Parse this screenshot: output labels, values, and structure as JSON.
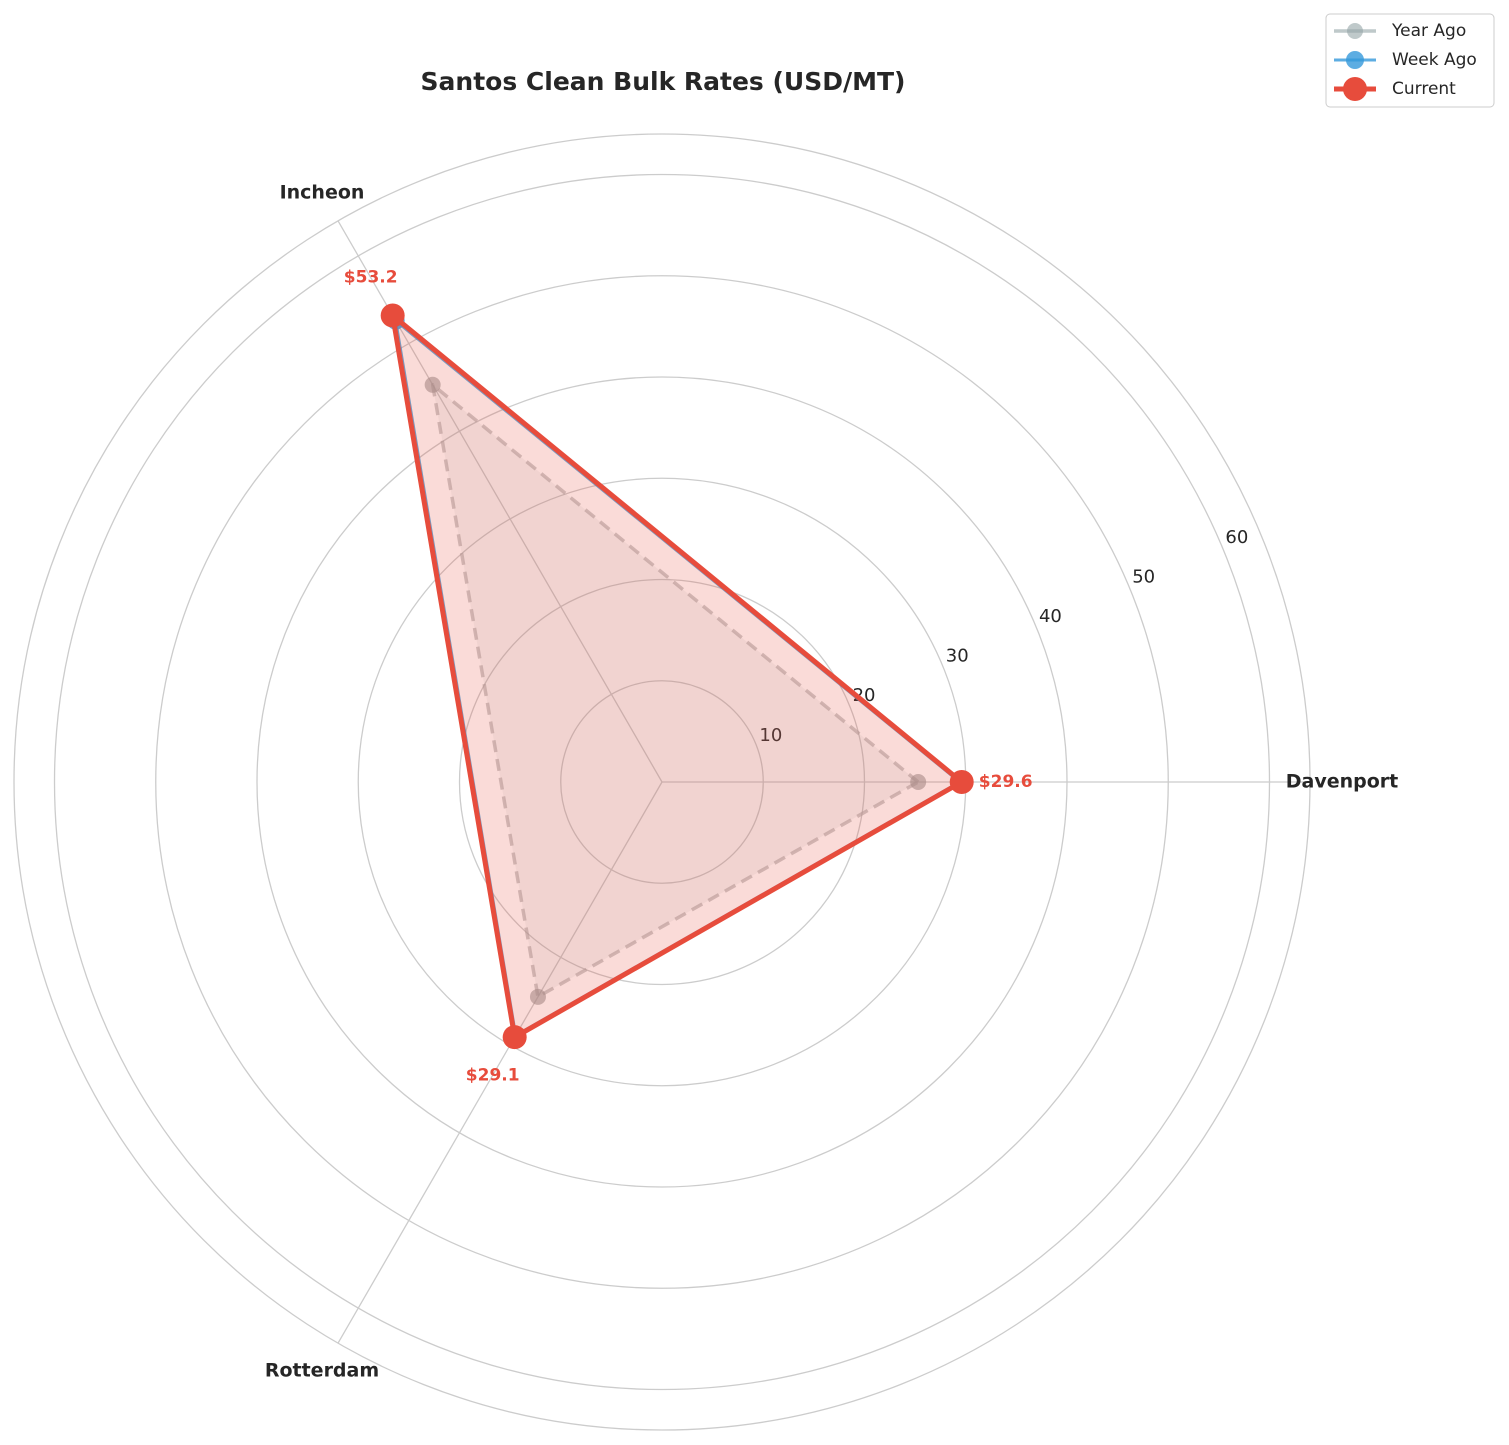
{
  "chart_data": {
    "type": "radar",
    "title": "Santos Clean Bulk Rates (USD/MT)",
    "categories": [
      "Davenport",
      "Incheon",
      "Rotterdam"
    ],
    "ylim": [
      0,
      64
    ],
    "yticks": [
      10,
      20,
      30,
      40,
      50,
      60
    ],
    "grid": true,
    "legend": "upper right",
    "series": [
      {
        "name": "Year Ago",
        "color": "#95a5a6",
        "values": [
          25.3,
          45.3,
          24.5
        ]
      },
      {
        "name": "Week Ago",
        "color": "#3498db",
        "values": [
          29.4,
          52.6,
          28.9
        ]
      },
      {
        "name": "Current",
        "color": "#e74c3c",
        "values": [
          29.6,
          53.2,
          29.1
        ],
        "value_labels": [
          "$29.6",
          "$53.2",
          "$29.1"
        ]
      }
    ]
  }
}
